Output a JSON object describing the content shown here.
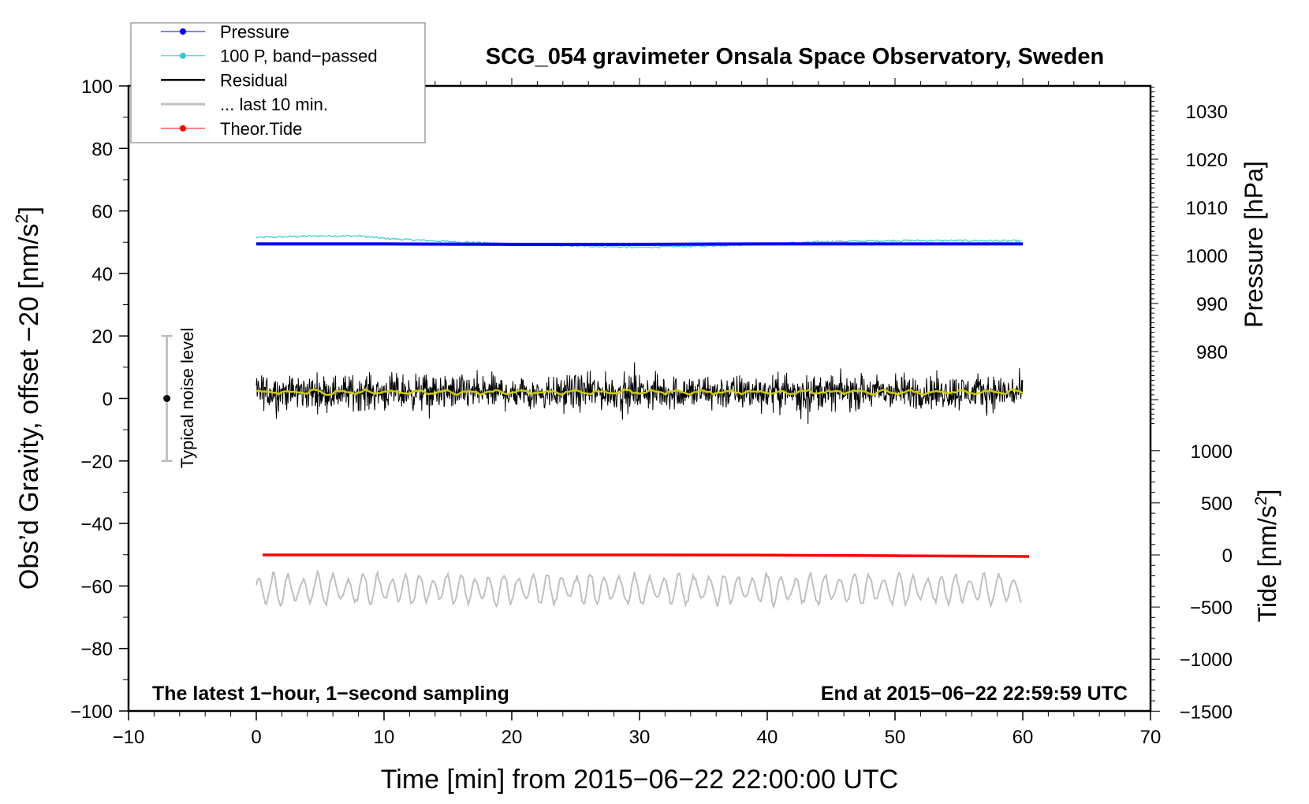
{
  "chart_data": {
    "type": "line",
    "title": "SCG_054 gravimeter Onsala Space Observatory, Sweden",
    "xlabel": "Time [min] from 2015−06−22 22:00:00 UTC",
    "ylabel": "Obs’d Gravity, offset −20 [nm/s",
    "ylabel_sup": "2",
    "ylabel_end": "]",
    "y2label": "Pressure [hPa]",
    "y3label": "Tide [nm/s",
    "y3label_sup": "2",
    "y3label_end": "]",
    "xlim": [
      -10,
      70
    ],
    "ylim": [
      -100,
      100
    ],
    "pressure_lim": [
      980,
      1030
    ],
    "tide_lim": [
      -1500,
      1000
    ],
    "xticks": [
      -10,
      0,
      10,
      20,
      30,
      40,
      50,
      60,
      70
    ],
    "xtick_labels": [
      "−10",
      "0",
      "10",
      "20",
      "30",
      "40",
      "50",
      "60",
      "70"
    ],
    "yticks": [
      100,
      80,
      60,
      40,
      20,
      0,
      -20,
      -40,
      -60,
      -80,
      -100
    ],
    "ytick_labels": [
      "100",
      "80",
      "60",
      "40",
      "20",
      "0",
      "−20",
      "−40",
      "−60",
      "−80",
      "−100"
    ],
    "pressure_ticks": [
      1030,
      1020,
      1010,
      1000,
      990,
      980
    ],
    "pressure_tick_labels": [
      "1030",
      "1020",
      "1010",
      "1000",
      "990",
      "980"
    ],
    "tide_ticks": [
      1000,
      500,
      0,
      -500,
      -1000,
      -1500
    ],
    "tide_tick_labels": [
      "1000",
      "500",
      "0",
      "−500",
      "−1000",
      "−1500"
    ],
    "grid": false,
    "legend_position": "top-left",
    "annotations": {
      "bottom_left": "The latest 1−hour, 1−second sampling",
      "bottom_right": "End at 2015−06−22 22:59:59 UTC",
      "noise_label": "Typical noise level"
    },
    "noise_bar": {
      "x": -7,
      "center": 0,
      "low": -20,
      "high": 20
    },
    "series": [
      {
        "name": "Pressure",
        "axis": "pressure",
        "color": "#0000ff",
        "x": [
          0,
          10,
          20,
          30,
          40,
          50,
          60
        ],
        "values": [
          1002.4,
          1002.4,
          1002.3,
          1002.3,
          1002.4,
          1002.4,
          1002.4
        ]
      },
      {
        "name": "100 P, band−passed",
        "axis": "left",
        "color": "#33cccc",
        "x": [
          0,
          5,
          8,
          10,
          15,
          20,
          25,
          30,
          35,
          40,
          45,
          50,
          55,
          60
        ],
        "values": [
          51.5,
          52.0,
          52.0,
          51.2,
          50.2,
          49.5,
          48.8,
          48.3,
          48.8,
          49.5,
          50.2,
          50.5,
          50.5,
          50.4
        ]
      },
      {
        "name": "Residual",
        "axis": "left",
        "color": "#000000",
        "x_range": [
          0,
          60
        ],
        "mean": 2,
        "amplitude": 5,
        "smoothed_color": "#cccc00"
      },
      {
        "name": "... last 10 min.",
        "axis": "left",
        "color": "#c0c0c0",
        "x_range": [
          0,
          60
        ],
        "mean": -61,
        "amplitude": 5
      },
      {
        "name": "Theor.Tide",
        "axis": "tide",
        "color": "#ff0000",
        "x": [
          0.5,
          10,
          20,
          30,
          40,
          50,
          60.5
        ],
        "values": [
          0,
          0,
          0,
          0,
          -2,
          -8,
          -15
        ]
      }
    ]
  }
}
